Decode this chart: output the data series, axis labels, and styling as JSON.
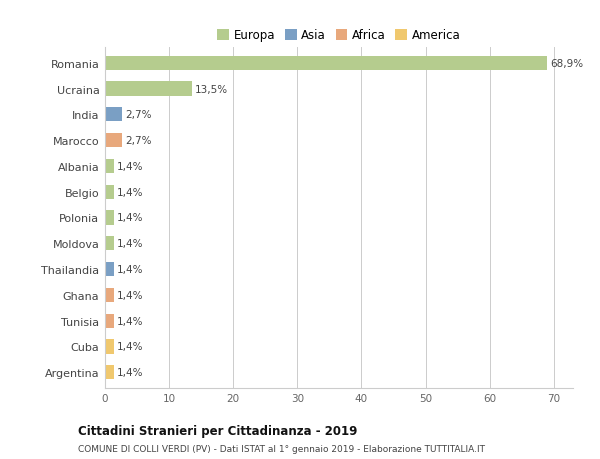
{
  "categories": [
    "Romania",
    "Ucraina",
    "India",
    "Marocco",
    "Albania",
    "Belgio",
    "Polonia",
    "Moldova",
    "Thailandia",
    "Ghana",
    "Tunisia",
    "Cuba",
    "Argentina"
  ],
  "values": [
    68.9,
    13.5,
    2.7,
    2.7,
    1.4,
    1.4,
    1.4,
    1.4,
    1.4,
    1.4,
    1.4,
    1.4,
    1.4
  ],
  "colors": [
    "#b5cc8e",
    "#b5cc8e",
    "#7a9fc4",
    "#e8a87c",
    "#b5cc8e",
    "#b5cc8e",
    "#b5cc8e",
    "#b5cc8e",
    "#7a9fc4",
    "#e8a87c",
    "#e8a87c",
    "#f0c86e",
    "#f0c86e"
  ],
  "labels": [
    "68,9%",
    "13,5%",
    "2,7%",
    "2,7%",
    "1,4%",
    "1,4%",
    "1,4%",
    "1,4%",
    "1,4%",
    "1,4%",
    "1,4%",
    "1,4%",
    "1,4%"
  ],
  "legend": {
    "Europa": "#b5cc8e",
    "Asia": "#7a9fc4",
    "Africa": "#e8a87c",
    "America": "#f0c86e"
  },
  "xlim": [
    0,
    73
  ],
  "xticks": [
    0,
    10,
    20,
    30,
    40,
    50,
    60,
    70
  ],
  "title": "Cittadini Stranieri per Cittadinanza - 2019",
  "subtitle": "COMUNE DI COLLI VERDI (PV) - Dati ISTAT al 1° gennaio 2019 - Elaborazione TUTTITALIA.IT",
  "bg_color": "#ffffff",
  "grid_color": "#cccccc",
  "bar_height": 0.55
}
